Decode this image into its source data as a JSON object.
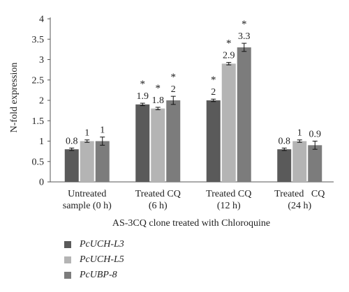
{
  "chart_data": {
    "type": "bar",
    "title": "",
    "xlabel": "AS-3CQ clone treated with Chloroquine",
    "ylabel": "N-fold expression",
    "ylim": [
      0,
      4
    ],
    "yticks": [
      "0",
      "0.5",
      "1",
      "1.5",
      "2",
      "2.5",
      "3",
      "3.5",
      "4"
    ],
    "grid": false,
    "legend_position": "bottom-left",
    "categories": [
      [
        "Untreated",
        "sample (0 h)"
      ],
      [
        "Treated CQ",
        "(6 h)"
      ],
      [
        "Treated CQ",
        "(12 h)"
      ],
      [
        "Treated   CQ",
        "(24 h)"
      ]
    ],
    "series": [
      {
        "name": "PcUCH-L3",
        "color": "#5a5a5a",
        "values": [
          0.8,
          1.9,
          2.0,
          0.8
        ],
        "errors": [
          0.03,
          0.03,
          0.03,
          0.03
        ],
        "labels": [
          "0.8",
          "1.9",
          "2",
          "0.8"
        ],
        "significant": [
          false,
          true,
          true,
          false
        ]
      },
      {
        "name": "PcUCH-L5",
        "color": "#b4b4b4",
        "values": [
          1.0,
          1.8,
          2.9,
          1.0
        ],
        "errors": [
          0.03,
          0.03,
          0.03,
          0.03
        ],
        "labels": [
          "1",
          "1.8",
          "2.9",
          "1"
        ],
        "significant": [
          false,
          true,
          true,
          false
        ]
      },
      {
        "name": "PcUBP-8",
        "color": "#7c7c7c",
        "values": [
          1.0,
          2.0,
          3.3,
          0.9
        ],
        "errors": [
          0.1,
          0.1,
          0.1,
          0.1
        ],
        "labels": [
          "1",
          "2",
          "3.3",
          "0.9"
        ],
        "significant": [
          false,
          true,
          true,
          false
        ]
      }
    ],
    "significance_marker": "*"
  }
}
